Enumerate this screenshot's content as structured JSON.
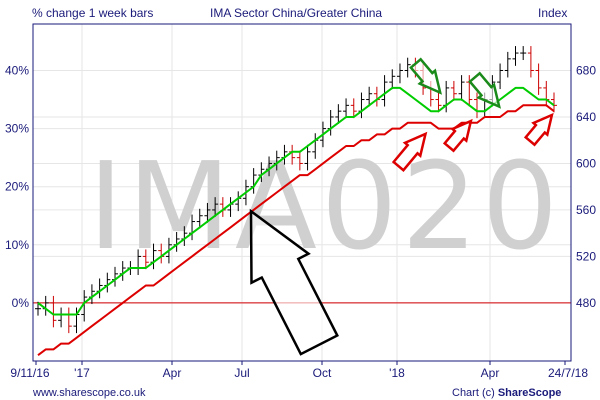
{
  "header": {
    "left_title": "% change 1 week bars",
    "center_title": "IMA Sector China/Greater China",
    "right_title": "Index"
  },
  "watermark": "IMA020",
  "footer": {
    "left": "www.sharescope.co.uk",
    "right_prefix": "Chart (c) ",
    "right_brand": "ShareScope"
  },
  "colors": {
    "frame": "#1a1a7a",
    "grid": "#e6e6e6",
    "zero_line": "#d40000",
    "bar_up": "#000000",
    "bar_down": "#cc0000",
    "ma_short": "#00cc00",
    "ma_long": "#dd0000",
    "arrow_black": "#000000",
    "arrow_green": "#1a8a1a",
    "arrow_red": "#dd0000"
  },
  "chart_data": {
    "type": "ohlc",
    "title": "IMA Sector China/Greater China",
    "left_axis": {
      "label": "% change 1 week bars",
      "ticks": [
        "40%",
        "30%",
        "20%",
        "10%",
        "0%"
      ],
      "values": [
        40,
        30,
        20,
        10,
        0
      ],
      "range": [
        -10,
        48
      ]
    },
    "right_axis": {
      "label": "Index",
      "ticks": [
        "680",
        "640",
        "600",
        "560",
        "520",
        "480"
      ],
      "values": [
        680,
        640,
        600,
        560,
        520,
        480
      ]
    },
    "x_axis": {
      "labels": [
        "9/11/16",
        "'17",
        "Apr",
        "Jul",
        "Oct",
        "'18",
        "Apr",
        "24/7/18"
      ],
      "range": [
        "2016-11-09",
        "2018-07-24"
      ]
    },
    "grid": true,
    "series": [
      {
        "type": "ohlc_weekly",
        "values": [
          -1,
          0,
          -3,
          -2,
          -4,
          -2,
          1,
          2,
          3,
          4,
          5,
          6,
          6,
          8,
          7,
          9,
          8,
          10,
          11,
          12,
          14,
          15,
          16,
          17,
          16,
          17,
          18,
          20,
          22,
          23,
          24,
          25,
          26,
          25,
          24,
          26,
          28,
          30,
          32,
          33,
          34,
          33,
          35,
          36,
          35,
          38,
          39,
          40,
          41,
          40,
          37,
          35,
          34,
          37,
          36,
          38,
          35,
          33,
          35,
          38,
          40,
          42,
          43,
          43,
          40,
          37,
          35,
          34
        ]
      },
      {
        "type": "moving_average_short",
        "values": [
          0,
          -1,
          -2,
          -2,
          -2,
          -2,
          0,
          1,
          2,
          3,
          4,
          5,
          6,
          6,
          6,
          7,
          8,
          9,
          10,
          11,
          12,
          13,
          14,
          15,
          16,
          17,
          18,
          19,
          20,
          22,
          23,
          24,
          25,
          26,
          26,
          27,
          28,
          29,
          30,
          31,
          32,
          32,
          33,
          34,
          35,
          36,
          37,
          37,
          36,
          35,
          34,
          33,
          33,
          34,
          35,
          35,
          34,
          33,
          33,
          34,
          35,
          36,
          37,
          37,
          36,
          35,
          35,
          34
        ]
      },
      {
        "type": "moving_average_long",
        "values": [
          -9,
          -8,
          -8,
          -7,
          -7,
          -6,
          -5,
          -4,
          -3,
          -2,
          -1,
          0,
          1,
          2,
          3,
          3,
          4,
          5,
          6,
          7,
          8,
          9,
          10,
          11,
          12,
          13,
          14,
          15,
          16,
          17,
          18,
          19,
          20,
          21,
          22,
          22,
          23,
          24,
          25,
          26,
          27,
          27,
          28,
          28,
          29,
          29,
          30,
          30,
          31,
          31,
          31,
          31,
          30,
          30,
          30,
          31,
          31,
          31,
          32,
          32,
          32,
          33,
          33,
          34,
          34,
          34,
          34,
          33
        ]
      }
    ],
    "annotations": [
      {
        "type": "arrow",
        "color": "black",
        "pointing": "up"
      },
      {
        "type": "arrow",
        "color": "green",
        "pointing": "down"
      },
      {
        "type": "arrow",
        "color": "green",
        "pointing": "down"
      },
      {
        "type": "arrow",
        "color": "red",
        "pointing": "up"
      },
      {
        "type": "arrow",
        "color": "red",
        "pointing": "up"
      },
      {
        "type": "arrow",
        "color": "red",
        "pointing": "up"
      }
    ]
  }
}
